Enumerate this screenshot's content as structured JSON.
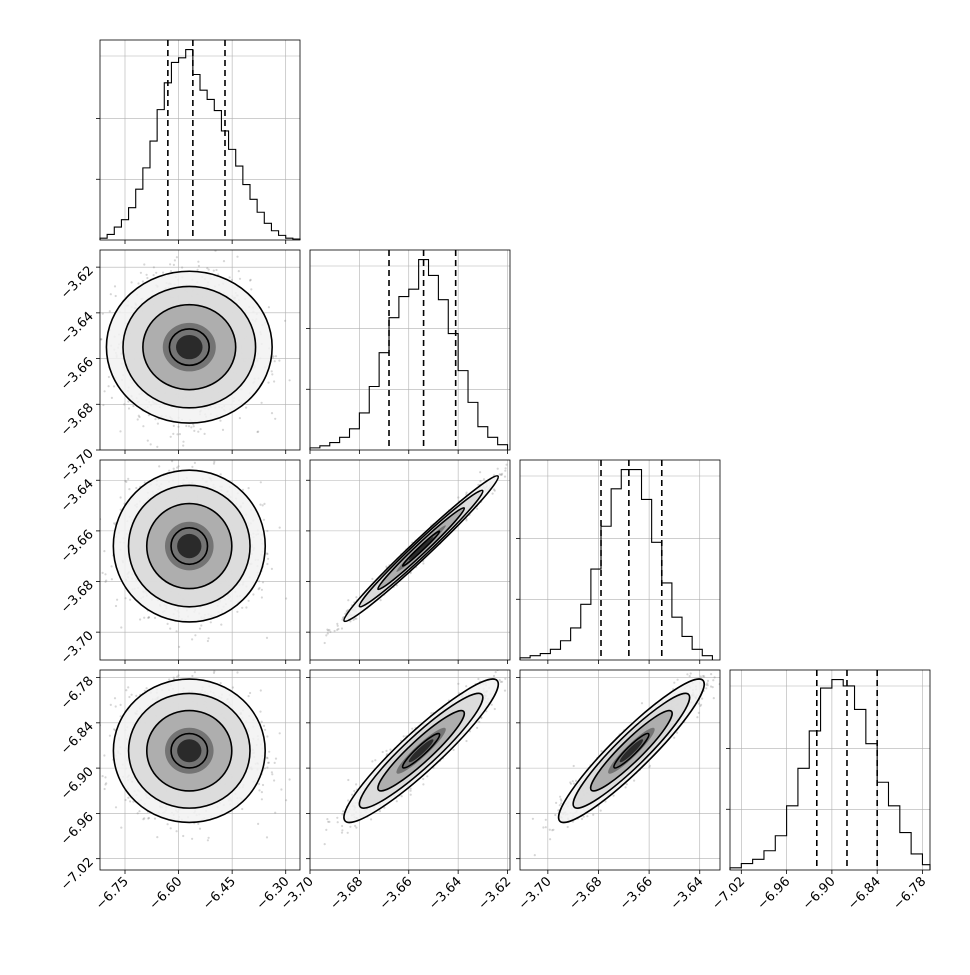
{
  "chart_data": {
    "type": "corner",
    "num_params": 4,
    "axes": {
      "x": [
        {
          "range": [
            -6.82,
            -6.26
          ],
          "ticks": [
            -6.75,
            -6.6,
            -6.45,
            -6.3
          ],
          "tick_labels": [
            "−6.75",
            "−6.60",
            "−6.45",
            "−6.30"
          ]
        },
        {
          "range": [
            -3.7,
            -3.619
          ],
          "ticks": [
            -3.7,
            -3.68,
            -3.66,
            -3.64,
            -3.62
          ],
          "tick_labels": [
            "−3.70",
            "−3.68",
            "−3.66",
            "−3.64",
            "−3.62"
          ]
        },
        {
          "range": [
            -3.711,
            -3.632
          ],
          "ticks": [
            -3.7,
            -3.68,
            -3.66,
            -3.64
          ],
          "tick_labels": [
            "−3.70",
            "−3.68",
            "−3.66",
            "−3.64"
          ]
        },
        {
          "range": [
            -7.035,
            -6.77
          ],
          "ticks": [
            -7.02,
            -6.96,
            -6.9,
            -6.84,
            -6.78
          ],
          "tick_labels": [
            "−7.02",
            "−6.96",
            "−6.90",
            "−6.84",
            "−6.78"
          ]
        }
      ],
      "y": [
        null,
        {
          "range": [
            -3.7,
            -3.6125
          ],
          "ticks": [
            -3.7,
            -3.68,
            -3.66,
            -3.64,
            -3.62
          ],
          "tick_labels": [
            "−3.70",
            "−3.68",
            "−3.66",
            "−3.64",
            "−3.62"
          ]
        },
        {
          "range": [
            -3.711,
            -3.632
          ],
          "ticks": [
            -3.7,
            -3.68,
            -3.66,
            -3.64
          ],
          "tick_labels": [
            "−3.70",
            "−3.68",
            "−3.66",
            "−3.64"
          ]
        },
        {
          "range": [
            -7.035,
            -6.77
          ],
          "ticks": [
            -7.02,
            -6.96,
            -6.9,
            -6.84,
            -6.78
          ],
          "tick_labels": [
            "−7.02",
            "−6.96",
            "−6.90",
            "−6.84",
            "−6.78"
          ]
        }
      ]
    },
    "histograms": [
      {
        "param": 0,
        "quantiles": [
          -6.63,
          -6.56,
          -6.47
        ],
        "bins": [
          -6.82,
          -6.8,
          -6.78,
          -6.76,
          -6.74,
          -6.72,
          -6.7,
          -6.68,
          -6.66,
          -6.64,
          -6.62,
          -6.6,
          -6.58,
          -6.56,
          -6.54,
          -6.52,
          -6.5,
          -6.48,
          -6.46,
          -6.44,
          -6.42,
          -6.4,
          -6.38,
          -6.36,
          -6.34,
          -6.32,
          -6.3,
          -6.28,
          -6.26
        ],
        "counts": [
          2,
          6,
          14,
          22,
          35,
          55,
          78,
          107,
          141,
          170,
          192,
          197,
          206,
          179,
          162,
          152,
          140,
          118,
          98,
          80,
          60,
          44,
          30,
          18,
          10,
          5,
          2,
          1
        ]
      },
      {
        "param": 1,
        "quantiles": [
          -3.668,
          -3.654,
          -3.641
        ],
        "bins": [
          -3.7,
          -3.696,
          -3.692,
          -3.688,
          -3.684,
          -3.68,
          -3.676,
          -3.672,
          -3.668,
          -3.664,
          -3.66,
          -3.656,
          -3.652,
          -3.648,
          -3.644,
          -3.64,
          -3.636,
          -3.632,
          -3.628,
          -3.624,
          -3.62
        ],
        "counts": [
          2,
          4,
          7,
          12,
          20,
          35,
          60,
          92,
          125,
          145,
          152,
          180,
          165,
          142,
          110,
          75,
          45,
          22,
          12,
          5
        ]
      },
      {
        "param": 2,
        "quantiles": [
          -3.679,
          -3.668,
          -3.655
        ],
        "bins": [
          -3.711,
          -3.707,
          -3.703,
          -3.699,
          -3.695,
          -3.691,
          -3.687,
          -3.683,
          -3.679,
          -3.675,
          -3.671,
          -3.667,
          -3.663,
          -3.659,
          -3.655,
          -3.651,
          -3.647,
          -3.643,
          -3.639,
          -3.635
        ],
        "counts": [
          2,
          4,
          6,
          10,
          18,
          30,
          52,
          85,
          125,
          160,
          178,
          178,
          150,
          110,
          72,
          40,
          22,
          10,
          4
        ]
      },
      {
        "param": 3,
        "quantiles": [
          -6.92,
          -6.88,
          -6.84
        ],
        "bins": [
          -7.035,
          -7.02,
          -7.005,
          -6.99,
          -6.975,
          -6.96,
          -6.945,
          -6.93,
          -6.915,
          -6.9,
          -6.885,
          -6.87,
          -6.855,
          -6.84,
          -6.825,
          -6.81,
          -6.795,
          -6.78,
          -6.77
        ],
        "counts": [
          2,
          6,
          10,
          18,
          32,
          60,
          95,
          130,
          170,
          178,
          172,
          150,
          118,
          82,
          60,
          35,
          15,
          5
        ]
      }
    ],
    "scatter_panels": [
      {
        "x_param": 0,
        "y_param": 1,
        "center": [
          -6.57,
          -3.655
        ],
        "sd": [
          0.085,
          0.0145
        ],
        "rho": 0.0
      },
      {
        "x_param": 0,
        "y_param": 2,
        "center": [
          -6.57,
          -3.666
        ],
        "sd": [
          0.085,
          0.012
        ],
        "rho": 0.0
      },
      {
        "x_param": 1,
        "y_param": 2,
        "center": [
          -3.655,
          -3.667
        ],
        "sd": [
          0.0125,
          0.0115
        ],
        "rho": 0.985
      },
      {
        "x_param": 0,
        "y_param": 3,
        "center": [
          -6.57,
          -6.877
        ],
        "sd": [
          0.085,
          0.038
        ],
        "rho": 0.0
      },
      {
        "x_param": 1,
        "y_param": 3,
        "center": [
          -3.655,
          -6.877
        ],
        "sd": [
          0.0125,
          0.038
        ],
        "rho": 0.93
      },
      {
        "x_param": 2,
        "y_param": 3,
        "center": [
          -3.667,
          -6.877
        ],
        "sd": [
          0.0115,
          0.038
        ],
        "rho": 0.93
      }
    ]
  }
}
